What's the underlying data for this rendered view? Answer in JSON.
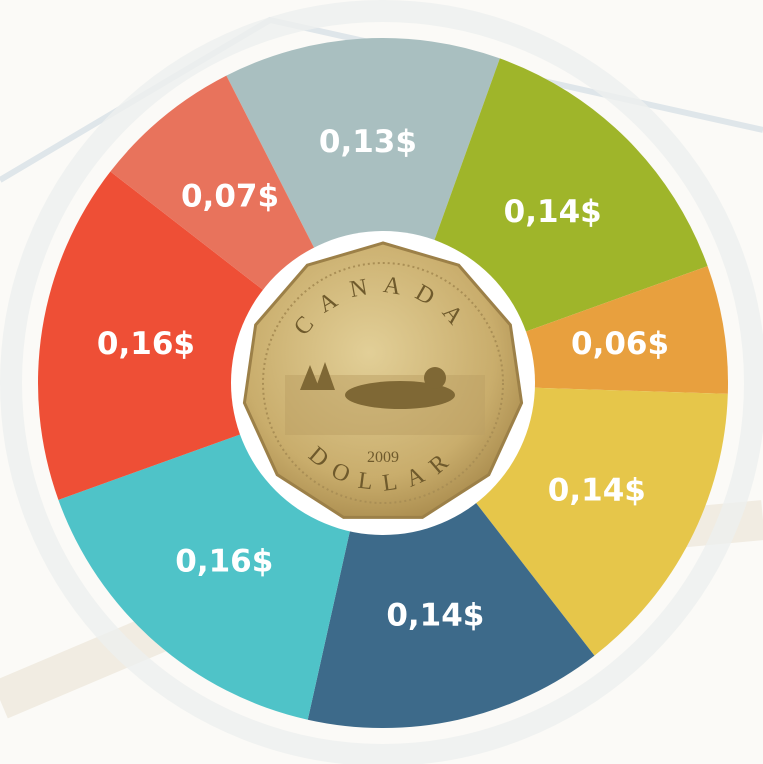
{
  "chart_data": {
    "type": "pie",
    "categories": [
      null,
      null,
      null,
      null,
      null,
      null,
      null,
      null
    ],
    "values": [
      0.13,
      0.14,
      0.06,
      0.14,
      0.14,
      0.16,
      0.16,
      0.07
    ],
    "value_labels": [
      "0,13$",
      "0,14$",
      "0,06$",
      "0,14$",
      "0,14$",
      "0,16$",
      "0,16$",
      "0,07$"
    ],
    "colors": [
      "#a9bfc0",
      "#9fb52a",
      "#e8a03e",
      "#e6c64a",
      "#3d6a8a",
      "#4fc3c8",
      "#ee4f36",
      "#e8735c"
    ],
    "annotations": [
      "CANADA",
      "2009",
      "DOLLAR"
    ]
  }
}
